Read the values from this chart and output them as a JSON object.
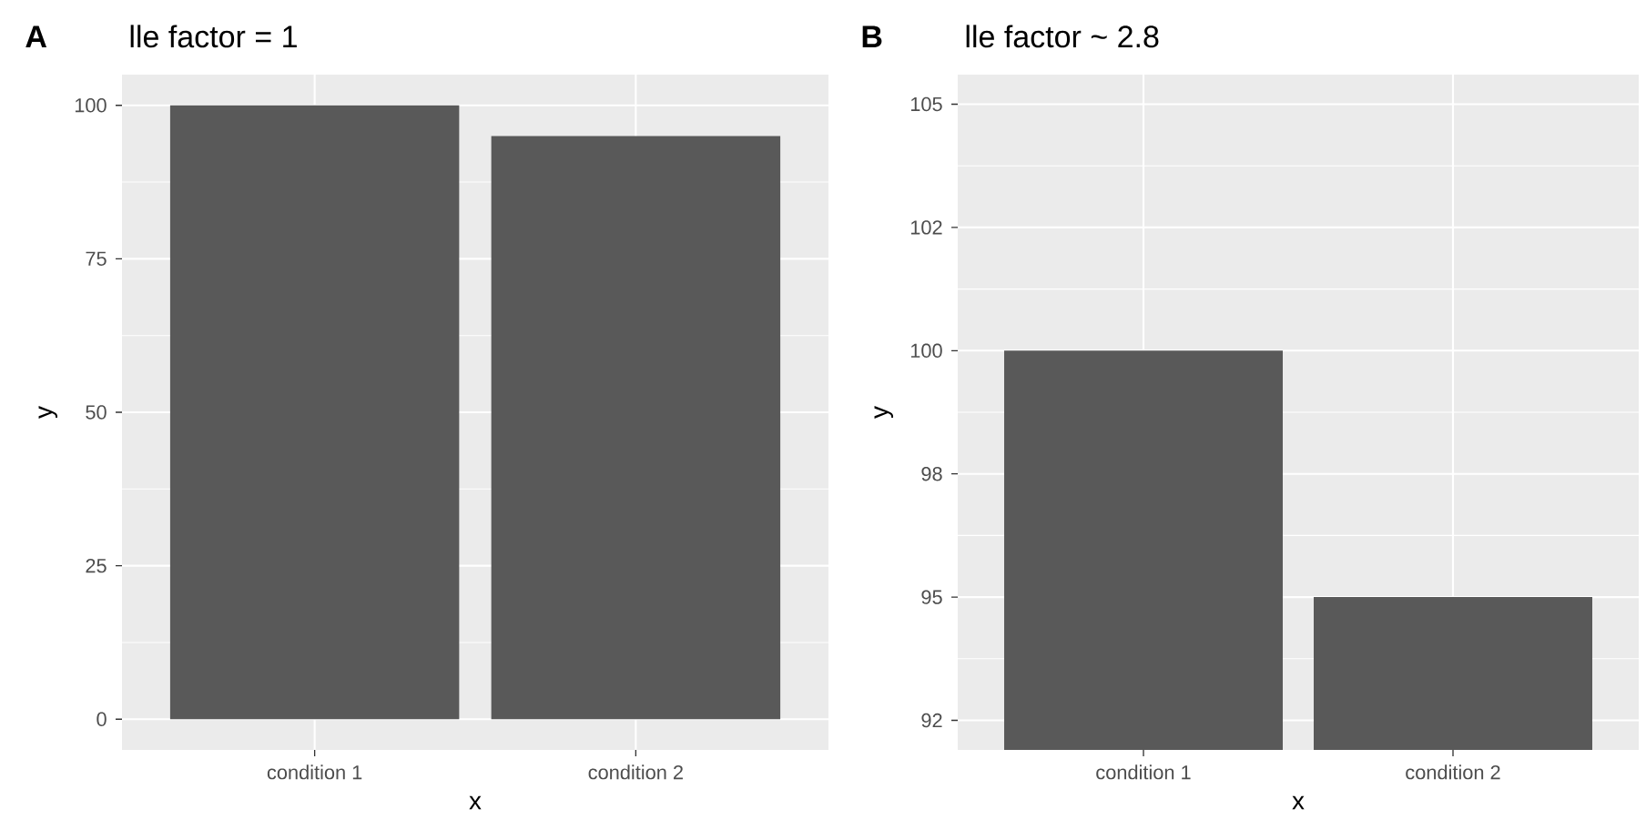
{
  "chart_data": [
    {
      "type": "bar",
      "title": "lle factor = 1",
      "annotations": [
        "A"
      ],
      "xlabel": "x",
      "ylabel": "y",
      "categories": [
        "condition 1",
        "condition 2"
      ],
      "values": [
        100,
        95
      ],
      "color": "#595959",
      "ylim": [
        -5,
        105
      ],
      "yticks": [
        0,
        25,
        50,
        75,
        100
      ],
      "grid": true
    },
    {
      "type": "bar",
      "title": "lle factor ~ 2.8",
      "annotations": [
        "B"
      ],
      "xlabel": "x",
      "ylabel": "y",
      "categories": [
        "condition 1",
        "condition 2"
      ],
      "values": [
        100,
        95
      ],
      "color": "#595959",
      "ylim": [
        91.9,
        105.6
      ],
      "yticks": [
        {
          "value": 92.5,
          "label": "92"
        },
        {
          "value": 95,
          "label": "95"
        },
        {
          "value": 97.5,
          "label": "98"
        },
        {
          "value": 100,
          "label": "100"
        },
        {
          "value": 102.5,
          "label": "102"
        },
        {
          "value": 105,
          "label": "105"
        }
      ],
      "grid": true
    }
  ]
}
